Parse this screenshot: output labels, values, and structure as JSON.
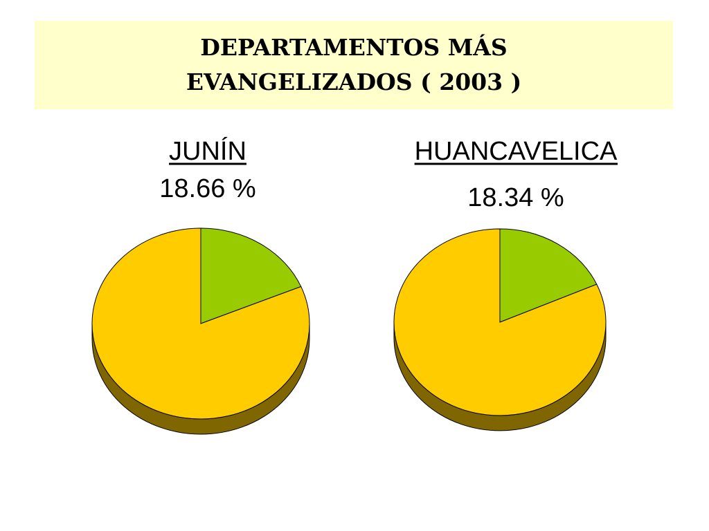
{
  "title": "DEPARTAMENTOS MÁS EVANGELIZADOS ( 2003 )",
  "chart_data": [
    {
      "type": "pie",
      "title": "JUNÍN",
      "categories": [
        null,
        null
      ],
      "values": [
        18.66,
        81.34
      ],
      "value_labels": [
        "18.66 %",
        null
      ],
      "colors": [
        "#99cc00",
        "#ffcc00"
      ],
      "side_color": "#806600"
    },
    {
      "type": "pie",
      "title": "HUANCAVELICA",
      "categories": [
        null,
        null
      ],
      "values": [
        18.34,
        81.66
      ],
      "value_labels": [
        "18.34 %",
        null
      ],
      "colors": [
        "#99cc00",
        "#ffcc00"
      ],
      "side_color": "#806600"
    }
  ]
}
